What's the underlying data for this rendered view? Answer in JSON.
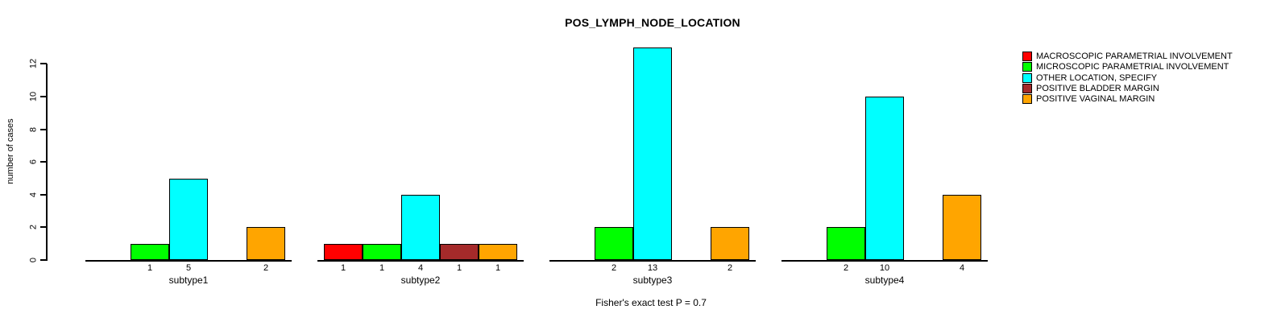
{
  "title": "POS_LYMPH_NODE_LOCATION",
  "chart_data": {
    "type": "bar",
    "title": "POS_LYMPH_NODE_LOCATION",
    "xlabel": "",
    "ylabel": "number of cases",
    "ylim": [
      0,
      13
    ],
    "yticks": [
      0,
      2,
      4,
      6,
      8,
      10,
      12
    ],
    "grid": false,
    "legend_position": "top-right",
    "annotation": "Fisher's exact test P = 0.7",
    "categories": [
      "subtype1",
      "subtype2",
      "subtype3",
      "subtype4"
    ],
    "series": [
      {
        "name": "MACROSCOPIC PARAMETRIAL INVOLVEMENT",
        "color": "#FF0000",
        "values": [
          0,
          1,
          0,
          0
        ]
      },
      {
        "name": "MICROSCOPIC PARAMETRIAL INVOLVEMENT",
        "color": "#00FF00",
        "values": [
          1,
          1,
          2,
          2
        ]
      },
      {
        "name": "OTHER LOCATION, SPECIFY",
        "color": "#00FFFF",
        "values": [
          5,
          4,
          13,
          10
        ]
      },
      {
        "name": "POSITIVE BLADDER MARGIN",
        "color": "#A52A2A",
        "values": [
          0,
          1,
          0,
          0
        ]
      },
      {
        "name": "POSITIVE VAGINAL MARGIN",
        "color": "#FFA500",
        "values": [
          2,
          1,
          2,
          4
        ]
      }
    ],
    "bar_value_labels": "shown under each nonzero bar"
  }
}
